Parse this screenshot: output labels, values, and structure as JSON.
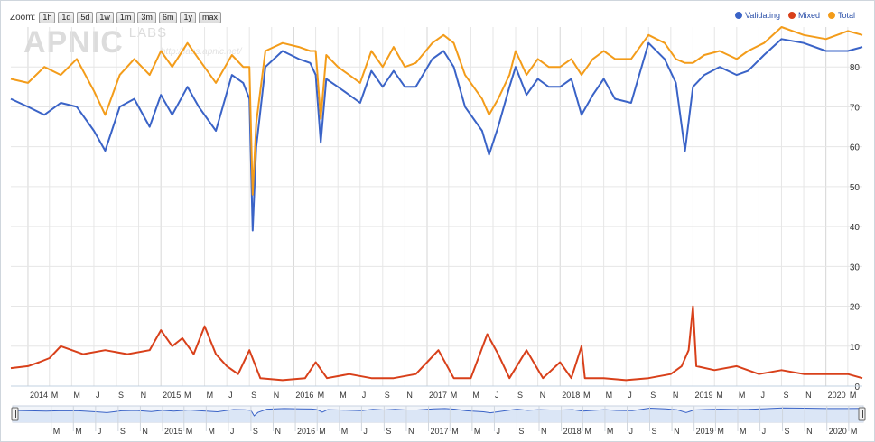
{
  "zoom": {
    "label": "Zoom:",
    "buttons": [
      "1h",
      "1d",
      "5d",
      "1w",
      "1m",
      "3m",
      "6m",
      "1y",
      "max"
    ]
  },
  "watermark": {
    "logo": "APNIC",
    "labs": "LABS",
    "url": "http://labs.apnic.net/"
  },
  "colors": {
    "validating": "#3a63c7",
    "mixed": "#d8401a",
    "total": "#f39c1a",
    "grid": "#e6e6e6",
    "navigator_fill": "#dbe6f6"
  },
  "chart_data": {
    "type": "line",
    "title": "",
    "xlabel": "",
    "ylabel": "",
    "ylim": [
      0,
      90
    ],
    "yticks": [
      10,
      20,
      30,
      40,
      50,
      60,
      70,
      80
    ],
    "y_zero_label": "0",
    "xlim": [
      "2013-11-15",
      "2020-04-10"
    ],
    "x_month_labels": [
      "2014",
      "M",
      "M",
      "J",
      "S",
      "N",
      "2015",
      "M",
      "M",
      "J",
      "S",
      "N",
      "2016",
      "M",
      "M",
      "J",
      "S",
      "N",
      "2017",
      "M",
      "M",
      "J",
      "S",
      "N",
      "2018",
      "M",
      "M",
      "J",
      "S",
      "N",
      "2019",
      "M",
      "M",
      "J",
      "S",
      "N",
      "2020",
      "M"
    ],
    "navigator_labels": [
      "M",
      "M",
      "J",
      "S",
      "N",
      "2015",
      "M",
      "M",
      "J",
      "S",
      "N",
      "2016",
      "M",
      "M",
      "J",
      "S",
      "N",
      "2017",
      "M",
      "M",
      "J",
      "S",
      "N",
      "2018",
      "M",
      "M",
      "J",
      "S",
      "N",
      "2019",
      "M",
      "M",
      "J",
      "S",
      "N",
      "2020",
      "M"
    ],
    "legend_position": "top-right",
    "grid": true,
    "series": [
      {
        "name": "Validating",
        "x": [
          "2013-11-15",
          "2014-01-01",
          "2014-02-15",
          "2014-04-01",
          "2014-05-15",
          "2014-07-01",
          "2014-08-01",
          "2014-09-10",
          "2014-10-20",
          "2014-12-01",
          "2015-01-01",
          "2015-02-01",
          "2015-03-15",
          "2015-04-15",
          "2015-06-01",
          "2015-07-15",
          "2015-08-15",
          "2015-09-01",
          "2015-09-10",
          "2015-09-20",
          "2015-10-15",
          "2015-12-01",
          "2016-01-15",
          "2016-02-15",
          "2016-03-01",
          "2016-03-15",
          "2016-03-30",
          "2016-05-01",
          "2016-06-01",
          "2016-07-01",
          "2016-08-01",
          "2016-09-01",
          "2016-10-01",
          "2016-11-01",
          "2016-12-01",
          "2017-01-15",
          "2017-02-15",
          "2017-03-15",
          "2017-04-15",
          "2017-06-01",
          "2017-06-20",
          "2017-07-15",
          "2017-08-15",
          "2017-09-01",
          "2017-10-01",
          "2017-11-01",
          "2017-12-01",
          "2018-01-01",
          "2018-02-01",
          "2018-03-01",
          "2018-04-01",
          "2018-05-01",
          "2018-06-01",
          "2018-07-15",
          "2018-09-01",
          "2018-10-15",
          "2018-11-15",
          "2018-12-10",
          "2019-01-01",
          "2019-02-01",
          "2019-03-15",
          "2019-05-01",
          "2019-06-01",
          "2019-07-15",
          "2019-09-01",
          "2019-11-01",
          "2020-01-01",
          "2020-03-01",
          "2020-04-10"
        ],
        "values": [
          72,
          70,
          68,
          71,
          70,
          64,
          59,
          70,
          72,
          65,
          73,
          68,
          75,
          70,
          64,
          78,
          76,
          72,
          39,
          60,
          80,
          84,
          82,
          81,
          78,
          61,
          77,
          75,
          73,
          71,
          79,
          75,
          79,
          75,
          75,
          82,
          84,
          80,
          70,
          64,
          58,
          65,
          75,
          80,
          73,
          77,
          75,
          75,
          77,
          68,
          73,
          77,
          72,
          71,
          86,
          82,
          76,
          59,
          75,
          78,
          80,
          78,
          79,
          83,
          87,
          86,
          84,
          84,
          85
        ]
      },
      {
        "name": "Mixed",
        "x": [
          "2013-11-15",
          "2014-01-01",
          "2014-02-01",
          "2014-03-01",
          "2014-04-01",
          "2014-06-01",
          "2014-08-01",
          "2014-10-01",
          "2014-12-01",
          "2015-01-01",
          "2015-02-01",
          "2015-03-01",
          "2015-04-01",
          "2015-05-01",
          "2015-06-01",
          "2015-07-01",
          "2015-08-01",
          "2015-09-01",
          "2015-10-01",
          "2015-12-01",
          "2016-02-01",
          "2016-03-01",
          "2016-04-01",
          "2016-06-01",
          "2016-08-01",
          "2016-10-01",
          "2016-12-01",
          "2017-01-01",
          "2017-02-01",
          "2017-03-15",
          "2017-05-01",
          "2017-06-15",
          "2017-07-15",
          "2017-08-15",
          "2017-10-01",
          "2017-11-15",
          "2018-01-01",
          "2018-02-01",
          "2018-03-01",
          "2018-03-10",
          "2018-05-01",
          "2018-07-01",
          "2018-09-01",
          "2018-11-01",
          "2018-12-01",
          "2018-12-20",
          "2019-01-01",
          "2019-01-10",
          "2019-03-01",
          "2019-05-01",
          "2019-07-01",
          "2019-09-01",
          "2019-11-01",
          "2020-01-01",
          "2020-03-01",
          "2020-04-10"
        ],
        "values": [
          4.5,
          5,
          6,
          7,
          10,
          8,
          9,
          8,
          9,
          14,
          10,
          12,
          8,
          15,
          8,
          5,
          3,
          9,
          2,
          1.5,
          2,
          6,
          2,
          3,
          2,
          2,
          3,
          6,
          9,
          2,
          2,
          13,
          8,
          2,
          9,
          2,
          6,
          2,
          10,
          2,
          2,
          1.5,
          2,
          3,
          5,
          9,
          20,
          5,
          4,
          5,
          3,
          4,
          3,
          3,
          3,
          2
        ]
      },
      {
        "name": "Total",
        "x": [
          "2013-11-15",
          "2014-01-01",
          "2014-02-15",
          "2014-04-01",
          "2014-05-15",
          "2014-07-01",
          "2014-08-01",
          "2014-09-10",
          "2014-10-20",
          "2014-12-01",
          "2015-01-01",
          "2015-02-01",
          "2015-03-15",
          "2015-04-15",
          "2015-06-01",
          "2015-07-15",
          "2015-08-15",
          "2015-09-01",
          "2015-09-10",
          "2015-09-20",
          "2015-10-15",
          "2015-12-01",
          "2016-01-15",
          "2016-02-15",
          "2016-03-01",
          "2016-03-15",
          "2016-03-30",
          "2016-05-01",
          "2016-06-01",
          "2016-07-01",
          "2016-08-01",
          "2016-09-01",
          "2016-10-01",
          "2016-11-01",
          "2016-12-01",
          "2017-01-15",
          "2017-02-15",
          "2017-03-15",
          "2017-04-15",
          "2017-06-01",
          "2017-06-20",
          "2017-07-15",
          "2017-08-15",
          "2017-09-01",
          "2017-10-01",
          "2017-11-01",
          "2017-12-01",
          "2018-01-01",
          "2018-02-01",
          "2018-03-01",
          "2018-04-01",
          "2018-05-01",
          "2018-06-01",
          "2018-07-15",
          "2018-09-01",
          "2018-10-15",
          "2018-11-15",
          "2018-12-10",
          "2019-01-01",
          "2019-02-01",
          "2019-03-15",
          "2019-05-01",
          "2019-06-01",
          "2019-07-15",
          "2019-09-01",
          "2019-11-01",
          "2020-01-01",
          "2020-03-01",
          "2020-04-10"
        ],
        "values": [
          77,
          76,
          80,
          78,
          82,
          74,
          68,
          78,
          82,
          78,
          84,
          80,
          86,
          82,
          76,
          83,
          80,
          80,
          48,
          66,
          84,
          86,
          85,
          84,
          84,
          67,
          83,
          80,
          78,
          76,
          84,
          80,
          85,
          80,
          81,
          86,
          88,
          86,
          78,
          72,
          68,
          72,
          78,
          84,
          78,
          82,
          80,
          80,
          82,
          78,
          82,
          84,
          82,
          82,
          88,
          86,
          82,
          81,
          81,
          83,
          84,
          82,
          84,
          86,
          90,
          88,
          87,
          89,
          88
        ]
      }
    ]
  }
}
